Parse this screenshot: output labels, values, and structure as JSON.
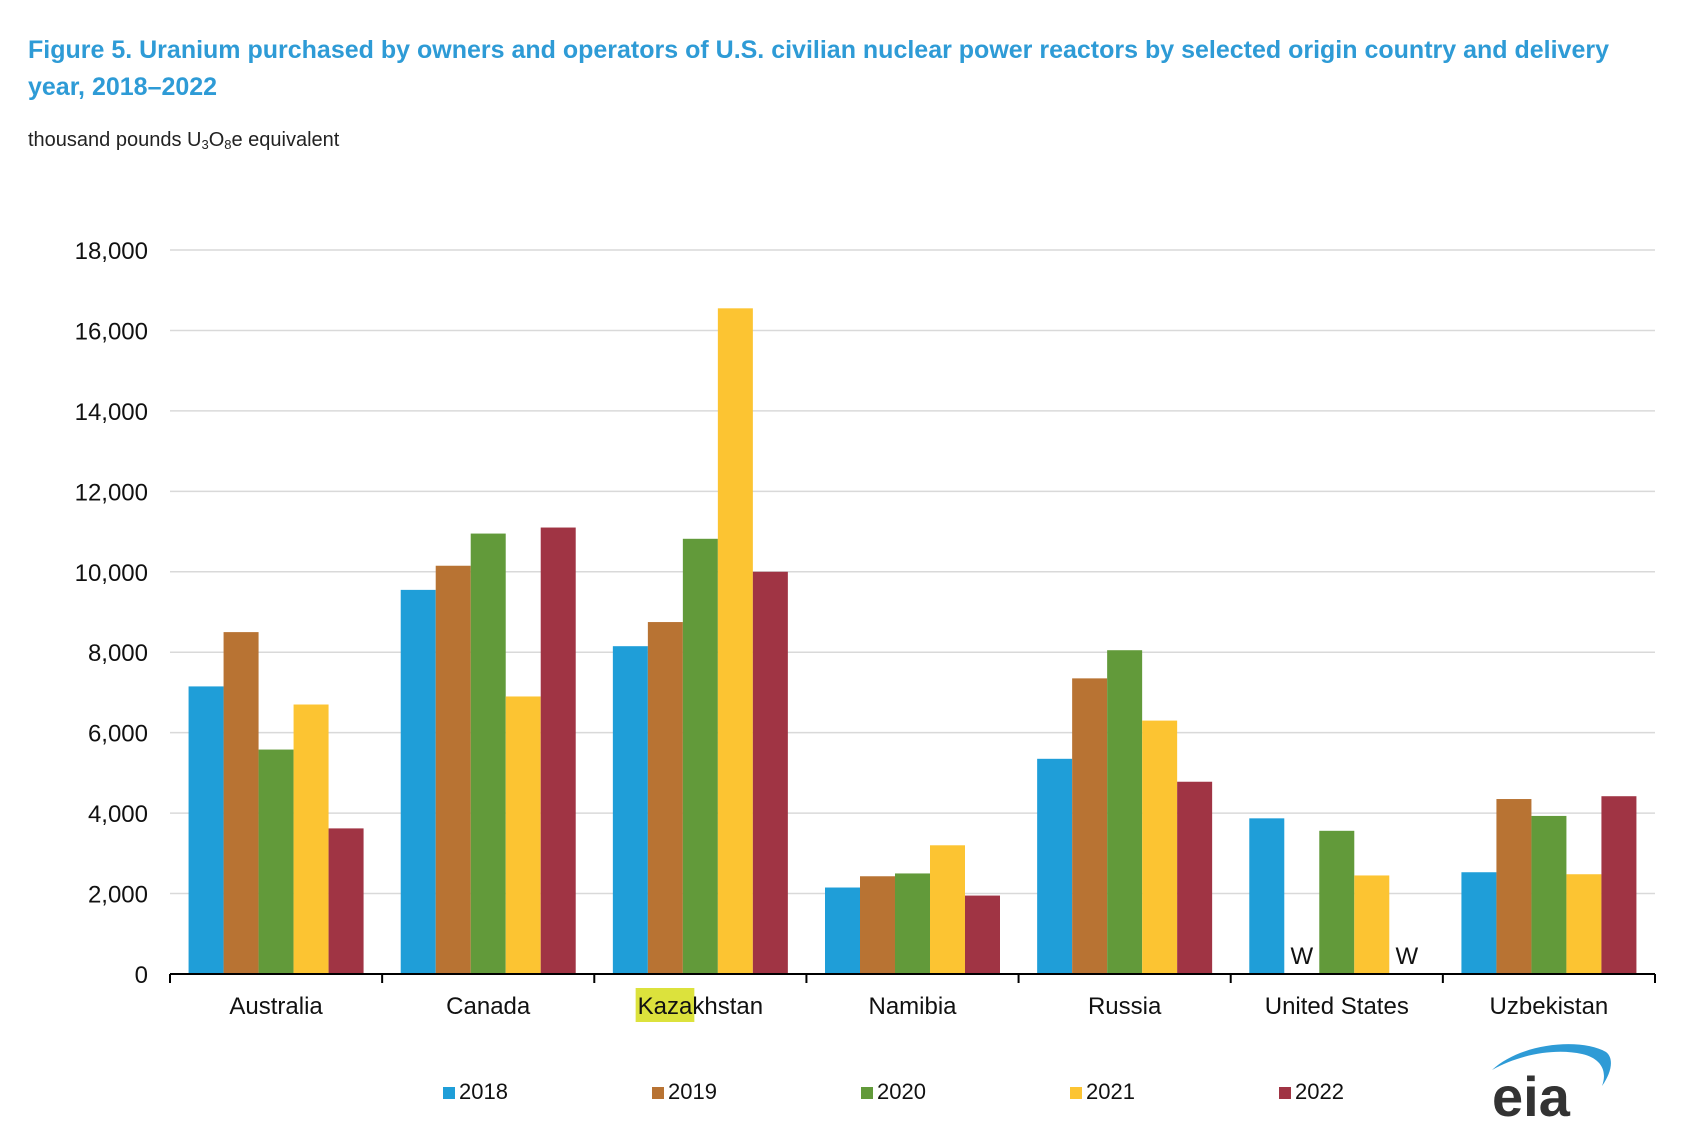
{
  "title": "Figure 5. Uranium purchased by owners and operators of U.S. civilian nuclear power reactors by selected origin country and delivery year, 2018–2022",
  "units": {
    "pre": "thousand pounds U",
    "sub1": "3",
    "mid": "O",
    "sub2": "8",
    "post": "e equivalent"
  },
  "logo_text": "eia",
  "chart_data": {
    "type": "bar",
    "categories": [
      "Australia",
      "Canada",
      "Kazakhstan",
      "Namibia",
      "Russia",
      "United States",
      "Uzbekistan"
    ],
    "highlight": {
      "category": "Kazakhstan",
      "text": "Kaza",
      "color": "#DCE23C"
    },
    "ylim": [
      0,
      18000
    ],
    "yticks": [
      0,
      2000,
      4000,
      6000,
      8000,
      10000,
      12000,
      14000,
      16000,
      18000
    ],
    "ytick_labels": [
      "0",
      "2,000",
      "4,000",
      "6,000",
      "8,000",
      "10,000",
      "12,000",
      "14,000",
      "16,000",
      "18,000"
    ],
    "grid": true,
    "legend_position": "bottom",
    "series": [
      {
        "name": "2018",
        "color": "#1F9ED8",
        "values": [
          7150,
          9550,
          8150,
          2150,
          5350,
          3870,
          2530
        ]
      },
      {
        "name": "2019",
        "color": "#B87333",
        "values": [
          8500,
          10150,
          8750,
          2430,
          7350,
          null,
          4350
        ]
      },
      {
        "name": "2020",
        "color": "#629A3A",
        "values": [
          5580,
          10950,
          10820,
          2500,
          8050,
          3560,
          3930
        ]
      },
      {
        "name": "2021",
        "color": "#FCC432",
        "values": [
          6700,
          6900,
          16550,
          3200,
          6300,
          2450,
          2480
        ]
      },
      {
        "name": "2022",
        "color": "#A03444",
        "values": [
          3620,
          11100,
          10000,
          1950,
          4780,
          null,
          4420
        ]
      }
    ],
    "withheld_label": "W"
  }
}
